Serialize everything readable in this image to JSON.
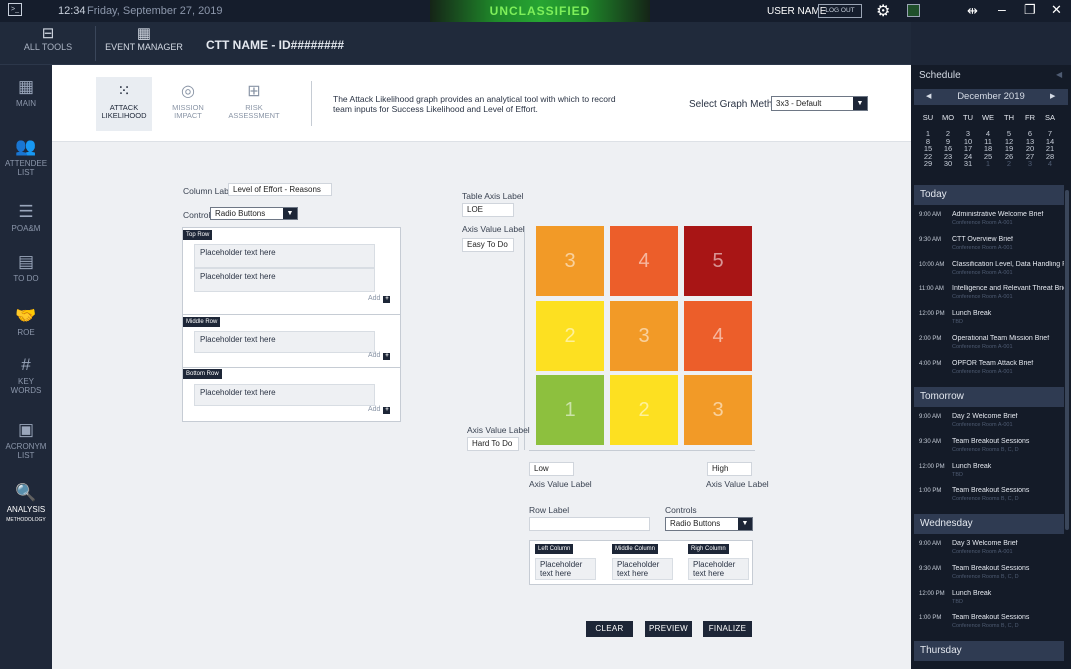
{
  "topbar": {
    "time": "12:34",
    "date": "Friday, September 27, 2019",
    "banner": "UNCLASSIFIED",
    "username": "USER NAME",
    "logout": "LOG OUT"
  },
  "header": {
    "all_tools": "ALL TOOLS",
    "event_manager": "EVENT MANAGER",
    "ctt_name": "CTT NAME - ID########"
  },
  "leftnav": [
    {
      "label": "MAIN",
      "icon": "calendar-icon"
    },
    {
      "label": "ATTENDEE LIST",
      "icon": "people-icon"
    },
    {
      "label": "POA&M",
      "icon": "checklist-icon"
    },
    {
      "label": "TO DO",
      "icon": "todo-icon"
    },
    {
      "label": "ROE",
      "icon": "handshake-icon"
    },
    {
      "label": "KEY WORDS",
      "icon": "hashtag-icon"
    },
    {
      "label": "ACRONYM LIST",
      "icon": "acronym-icon"
    },
    {
      "label": "ANALYSIS",
      "sub": "METHODOLOGY",
      "icon": "magnifier-icon"
    }
  ],
  "tabs": [
    {
      "label1": "ATTACK",
      "label2": "LIKELIHOOD",
      "icon": "scatter-icon"
    },
    {
      "label1": "MISSION",
      "label2": "IMPACT",
      "icon": "target-icon"
    },
    {
      "label1": "RISK",
      "label2": "ASSESSMENT",
      "icon": "risk-icon"
    }
  ],
  "description": "The Attack Likelihood graph provides an analytical tool with which to record team inputs for Success Likelihood and Level of Effort.",
  "graph_method": {
    "label": "Select Graph Method",
    "value": "3x3 - Default"
  },
  "left_form": {
    "column_label": "Column Label",
    "column_value": "Level of Effort - Reasons",
    "controls_label": "Controls",
    "controls_value": "Radio Buttons",
    "rows": [
      {
        "header": "Top Row",
        "items": [
          "Placeholder text here",
          "Placeholder text here"
        ],
        "add": "Add"
      },
      {
        "header": "Middle Row",
        "items": [
          "Placeholder text here"
        ],
        "add": "Add"
      },
      {
        "header": "Bottom Row",
        "items": [
          "Placeholder text here"
        ],
        "add": "Add"
      }
    ]
  },
  "matrix": {
    "table_axis_label": "Table Axis Label",
    "table_axis_value": "LOE",
    "axis_value_label": "Axis Value Label",
    "top_value": "Easy To Do",
    "bottom_value": "Hard To Do",
    "x_low": "Low",
    "x_high": "High",
    "cells": [
      {
        "value": "3",
        "color": "#f29a27"
      },
      {
        "value": "4",
        "color": "#ec5e2a"
      },
      {
        "value": "5",
        "color": "#a81515"
      },
      {
        "value": "2",
        "color": "#fde021"
      },
      {
        "value": "3",
        "color": "#f29a27"
      },
      {
        "value": "4",
        "color": "#ec5e2a"
      },
      {
        "value": "1",
        "color": "#8dc03e"
      },
      {
        "value": "2",
        "color": "#fde021"
      },
      {
        "value": "3",
        "color": "#f29a27"
      }
    ]
  },
  "row_form": {
    "row_label": "Row Label",
    "controls_label": "Controls",
    "controls_value": "Radio Buttons",
    "columns": [
      {
        "header": "Left Column",
        "text1": "Placeholder",
        "text2": "text here"
      },
      {
        "header": "Middle Column",
        "text1": "Placeholder",
        "text2": "text here"
      },
      {
        "header": "Righ Column",
        "text1": "Placeholder",
        "text2": "text here"
      }
    ]
  },
  "buttons": {
    "clear": "CLEAR",
    "preview": "PREVIEW",
    "finalize": "FINALIZE"
  },
  "schedule": {
    "title": "Schedule",
    "month": "December 2019",
    "weekdays": [
      "SU",
      "MO",
      "TU",
      "WE",
      "TH",
      "FR",
      "SA"
    ],
    "weeks": [
      [
        "1",
        "2",
        "3",
        "4",
        "5",
        "6",
        "7"
      ],
      [
        "8",
        "9",
        "10",
        "11",
        "12",
        "13",
        "14"
      ],
      [
        "15",
        "16",
        "17",
        "18",
        "19",
        "20",
        "21"
      ],
      [
        "22",
        "23",
        "24",
        "25",
        "26",
        "27",
        "28"
      ],
      [
        "29",
        "30",
        "31",
        "1",
        "2",
        "3",
        "4"
      ]
    ],
    "days": [
      {
        "name": "Today",
        "events": [
          {
            "time": "9:00 AM",
            "title": "Administrative Welcome Brief",
            "room": "Conference Room A-001"
          },
          {
            "time": "9:30 AM",
            "title": "CTT Overview Brief",
            "room": "Conference Room A-001"
          },
          {
            "time": "10:00 AM",
            "title": "Classification Level, Data Handling Pl...",
            "room": "Conference Room A-001"
          },
          {
            "time": "11:00 AM",
            "title": "Intelligence and Relevant Threat Brief",
            "room": "Conference Room A-001"
          },
          {
            "time": "12:00 PM",
            "title": "Lunch Break",
            "room": "TBD"
          },
          {
            "time": "2:00 PM",
            "title": "Operational Team Mission Brief",
            "room": "Conference Room A-001"
          },
          {
            "time": "4:00 PM",
            "title": "OPFOR Team Attack Brief",
            "room": "Conference Room A-001"
          }
        ]
      },
      {
        "name": "Tomorrow",
        "events": [
          {
            "time": "9:00 AM",
            "title": "Day 2 Welcome Brief",
            "room": "Conference Room A-001"
          },
          {
            "time": "9:30 AM",
            "title": "Team Breakout Sessions",
            "room": "Conference Rooms B, C, D"
          },
          {
            "time": "12:00 PM",
            "title": "Lunch Break",
            "room": "TBD"
          },
          {
            "time": "1:00 PM",
            "title": "Team Breakout Sessions",
            "room": "Conference Rooms B, C, D"
          }
        ]
      },
      {
        "name": "Wednesday",
        "events": [
          {
            "time": "9:00 AM",
            "title": "Day 3 Welcome Brief",
            "room": "Conference Room A-001"
          },
          {
            "time": "9:30 AM",
            "title": "Team Breakout Sessions",
            "room": "Conference Rooms B, C, D"
          },
          {
            "time": "12:00 PM",
            "title": "Lunch Break",
            "room": "TBD"
          },
          {
            "time": "1:00 PM",
            "title": "Team Breakout Sessions",
            "room": "Conference Rooms B, C, D"
          }
        ]
      },
      {
        "name": "Thursday",
        "events": []
      }
    ]
  }
}
